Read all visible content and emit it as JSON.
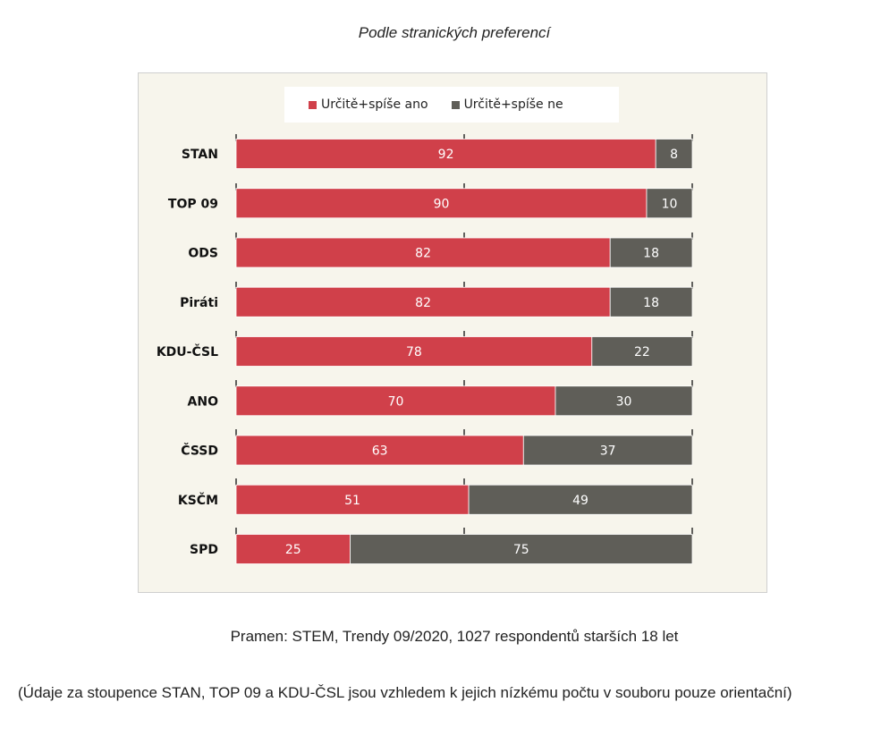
{
  "heading": "Podle stranických preferencí",
  "source": "Pramen: STEM, Trendy 09/2020, 1027 respondentů starších 18 let",
  "footnote": "(Údaje za stoupence STAN, TOP 09 a KDU-ČSL jsou vzhledem k jejich nízkému počtu v souboru pouze orientační)",
  "colors": {
    "yes": "#d0404a",
    "no": "#5f5e58",
    "panel": "#f7f5ec"
  },
  "chart_data": {
    "type": "bar",
    "orientation": "horizontal",
    "stacked": true,
    "categories": [
      "STAN",
      "TOP 09",
      "ODS",
      "Piráti",
      "KDU-ČSL",
      "ANO",
      "ČSSD",
      "KSČM",
      "SPD"
    ],
    "series": [
      {
        "name": "Určitě+spíše ano",
        "values": [
          92,
          90,
          82,
          82,
          78,
          70,
          63,
          51,
          25
        ]
      },
      {
        "name": "Určitě+spíše ne",
        "values": [
          8,
          10,
          18,
          18,
          22,
          30,
          37,
          49,
          75
        ]
      }
    ],
    "xlim": [
      0,
      100
    ],
    "gridlines_at": [
      0,
      50,
      100
    ],
    "legend_position": "top",
    "data_labels": true
  }
}
